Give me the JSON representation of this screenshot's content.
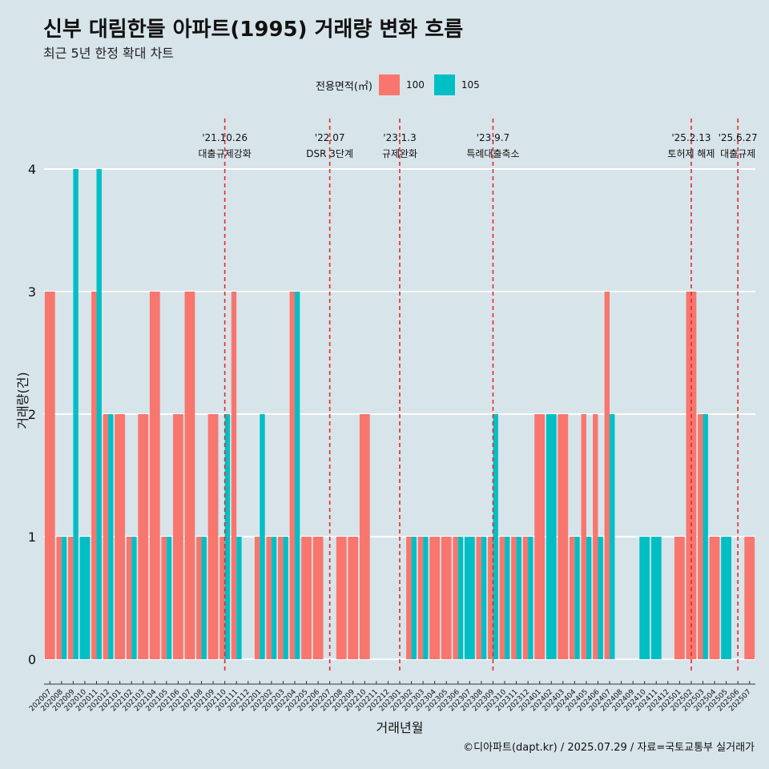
{
  "title": "신부 대림한들 아파트(1995) 거래량 변화 흐름",
  "subtitle": "최근 5년 한정 확대 차트",
  "caption": "©디아파트(dapt.kr) / 2025.07.29 / 자료=국토교통부 실거래가",
  "legend": {
    "title": "전용면적(㎡)",
    "items": [
      {
        "label": "100",
        "color": "#f8766d"
      },
      {
        "label": "105",
        "color": "#00bfc4"
      }
    ]
  },
  "chart_data": {
    "type": "bar",
    "title": "신부 대림한들 아파트(1995) 거래량 변화 흐름",
    "xlabel": "거래년월",
    "ylabel": "거래량(건)",
    "ylim": [
      0,
      4
    ],
    "yticks": [
      0,
      1,
      2,
      3,
      4
    ],
    "categories": [
      "202007",
      "202008",
      "202009",
      "202010",
      "202011",
      "202012",
      "202101",
      "202102",
      "202103",
      "202104",
      "202105",
      "202106",
      "202107",
      "202108",
      "202109",
      "202110",
      "202111",
      "202112",
      "202201",
      "202202",
      "202203",
      "202204",
      "202205",
      "202206",
      "202207",
      "202208",
      "202209",
      "202210",
      "202211",
      "202212",
      "202301",
      "202302",
      "202303",
      "202304",
      "202305",
      "202306",
      "202307",
      "202308",
      "202309",
      "202310",
      "202311",
      "202312",
      "202401",
      "202402",
      "202403",
      "202404",
      "202405",
      "202406",
      "202407",
      "202408",
      "202409",
      "202410",
      "202411",
      "202412",
      "202501",
      "202502",
      "202503",
      "202504",
      "202505",
      "202506",
      "202507"
    ],
    "series": [
      {
        "name": "100",
        "color": "#f8766d",
        "values": [
          3,
          1,
          1,
          0,
          3,
          2,
          2,
          1,
          2,
          3,
          1,
          2,
          3,
          1,
          2,
          1,
          3,
          0,
          1,
          1,
          1,
          3,
          1,
          1,
          0,
          1,
          1,
          2,
          0,
          0,
          0,
          1,
          1,
          1,
          1,
          1,
          0,
          1,
          1,
          1,
          1,
          1,
          2,
          0,
          2,
          1,
          2,
          2,
          3,
          0,
          0,
          0,
          0,
          0,
          1,
          3,
          2,
          1,
          0,
          0,
          1
        ]
      },
      {
        "name": "105",
        "color": "#00bfc4",
        "values": [
          0,
          1,
          4,
          1,
          4,
          2,
          0,
          1,
          0,
          0,
          1,
          0,
          0,
          1,
          0,
          2,
          1,
          0,
          2,
          1,
          1,
          3,
          0,
          0,
          0,
          0,
          0,
          0,
          0,
          0,
          0,
          1,
          1,
          0,
          0,
          1,
          1,
          1,
          2,
          1,
          1,
          1,
          0,
          2,
          0,
          1,
          1,
          1,
          2,
          0,
          0,
          1,
          1,
          0,
          0,
          0,
          2,
          0,
          1,
          0,
          0
        ]
      }
    ],
    "annotations": [
      {
        "category": "202110",
        "date": "'21.10.26",
        "label": "대출규제강화"
      },
      {
        "category": "202207",
        "date": "'22.07",
        "label": "DSR 3단계"
      },
      {
        "category": "202301",
        "date": "'23.1.3",
        "label": "규제완화"
      },
      {
        "category": "202309",
        "date": "'23.9.7",
        "label": "특례대출축소"
      },
      {
        "category": "202502",
        "date": "'25.2.13",
        "label": "토허제 해제"
      },
      {
        "category": "202506",
        "date": "'25.6.27",
        "label": "대출규제"
      }
    ]
  }
}
